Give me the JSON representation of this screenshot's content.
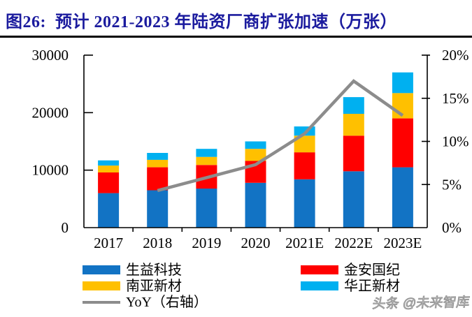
{
  "header": {
    "title": "图26:  预计 2021-2023 年陆资厂商扩张加速（万张）"
  },
  "chart_data": {
    "type": "bar",
    "subtype": "stacked-bars-with-right-axis-line",
    "title": "预计 2021-2023 年陆资厂商扩张加速（万张）",
    "categories": [
      "2017",
      "2018",
      "2019",
      "2020",
      "2021E",
      "2022E",
      "2023E"
    ],
    "series": [
      {
        "name": "生益科技",
        "color": "#1273C4",
        "values": [
          6000,
          6500,
          6800,
          7800,
          8400,
          9800,
          10500
        ]
      },
      {
        "name": "金安国纪",
        "color": "#FF0000",
        "values": [
          3600,
          4000,
          4100,
          3800,
          4700,
          6200,
          8500
        ]
      },
      {
        "name": "南亚新材",
        "color": "#FFC000",
        "values": [
          1200,
          1300,
          1400,
          2100,
          2900,
          3800,
          4400
        ]
      },
      {
        "name": "华正新材",
        "color": "#00B0F0",
        "values": [
          900,
          1200,
          1400,
          1300,
          1600,
          2900,
          3600
        ]
      }
    ],
    "stacked_totals": [
      11700,
      13000,
      13700,
      15000,
      17600,
      22700,
      27000
    ],
    "line_series": {
      "name": "YoY（右轴）",
      "axis": "right",
      "color": "#8C8C8C",
      "values_pct": [
        null,
        4.3,
        5.8,
        7.3,
        10.9,
        17.0,
        13.0
      ]
    },
    "left_axis": {
      "min": 0,
      "max": 30000,
      "tick_values": [
        0,
        10000,
        20000,
        30000
      ],
      "tick_labels": [
        "0",
        "10000",
        "20000",
        "30000"
      ]
    },
    "right_axis": {
      "min": 0,
      "max": 20,
      "tick_values": [
        0,
        5,
        10,
        15,
        20
      ],
      "tick_labels": [
        "0%",
        "5%",
        "10%",
        "15%",
        "20%"
      ]
    },
    "grid": false,
    "legend_position": "bottom"
  },
  "legend": {
    "items": [
      {
        "label": "生益科技",
        "color": "#1273C4",
        "marker": "box"
      },
      {
        "label": "金安国纪",
        "color": "#FF0000",
        "marker": "box"
      },
      {
        "label": "南亚新材",
        "color": "#FFC000",
        "marker": "box"
      },
      {
        "label": "华正新材",
        "color": "#00B0F0",
        "marker": "box"
      },
      {
        "label": "YoY（右轴）",
        "color": "#8C8C8C",
        "marker": "line"
      }
    ]
  },
  "footer": {
    "watermark": "头条 @未来智库"
  },
  "colors": {
    "title_text": "#1B1B9E",
    "axis": "#000000",
    "background": "#FFFFFF"
  }
}
